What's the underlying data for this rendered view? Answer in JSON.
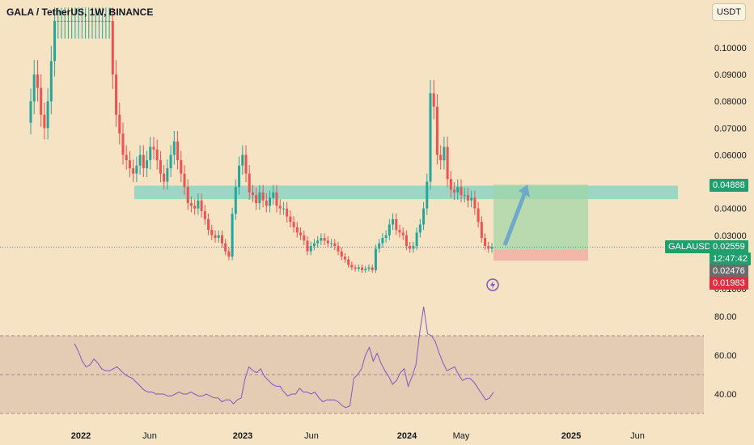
{
  "header": {
    "title": "GALA / TetherUS, 1W, BINANCE",
    "currency": "USDT"
  },
  "price_tags": {
    "target": "0.04888",
    "symbol": "GALAUSDT",
    "current": "0.02559",
    "countdown": "12:47:42",
    "entry": "0.02476",
    "stop": "0.01983"
  },
  "colors": {
    "up": "#26a69a",
    "down": "#ef5350",
    "background": "#f5e3c3",
    "zone": "#7fd1c4",
    "rsi": "#7e57c2"
  },
  "chart_data": [
    {
      "type": "candlestick",
      "symbol": "GALA / TetherUS, 1W, BINANCE",
      "y_ticks": [
        "0.10000",
        "0.09000",
        "0.08000",
        "0.07000",
        "0.06000",
        "0.05000",
        "0.04000",
        "0.03000",
        "0.02000",
        "0.01000"
      ],
      "x_ticks": [
        "2022",
        "Jun",
        "2023",
        "Jun",
        "2024",
        "May",
        "2025",
        "Jun"
      ],
      "ylim": [
        0.008,
        0.11
      ],
      "resistance_zone": [
        0.0435,
        0.0485
      ],
      "close_series": [
        0.08,
        0.09,
        0.085,
        0.075,
        0.07,
        0.08,
        0.095,
        0.11,
        0.11,
        0.11,
        0.11,
        0.11,
        0.11,
        0.11,
        0.11,
        0.11,
        0.11,
        0.11,
        0.11,
        0.11,
        0.11,
        0.11,
        0.11,
        0.11,
        0.09,
        0.075,
        0.068,
        0.06,
        0.058,
        0.055,
        0.053,
        0.056,
        0.06,
        0.055,
        0.058,
        0.063,
        0.062,
        0.058,
        0.053,
        0.05,
        0.055,
        0.06,
        0.065,
        0.058,
        0.053,
        0.048,
        0.042,
        0.041,
        0.04,
        0.043,
        0.039,
        0.036,
        0.032,
        0.03,
        0.029,
        0.03,
        0.027,
        0.024,
        0.022,
        0.038,
        0.048,
        0.056,
        0.06,
        0.053,
        0.046,
        0.045,
        0.042,
        0.046,
        0.043,
        0.041,
        0.044,
        0.046,
        0.041,
        0.04,
        0.04,
        0.037,
        0.035,
        0.033,
        0.031,
        0.03,
        0.028,
        0.024,
        0.026,
        0.027,
        0.028,
        0.029,
        0.028,
        0.027,
        0.027,
        0.026,
        0.024,
        0.022,
        0.021,
        0.019,
        0.018,
        0.0175,
        0.018,
        0.017,
        0.0175,
        0.018,
        0.017,
        0.025,
        0.027,
        0.029,
        0.03,
        0.034,
        0.036,
        0.032,
        0.031,
        0.03,
        0.026,
        0.025,
        0.026,
        0.031,
        0.034,
        0.04,
        0.05,
        0.083,
        0.078,
        0.06,
        0.058,
        0.063,
        0.051,
        0.047,
        0.046,
        0.048,
        0.045,
        0.045,
        0.043,
        0.044,
        0.04,
        0.035,
        0.029,
        0.026,
        0.025,
        0.02559
      ],
      "projection": {
        "entry": 0.02476,
        "target": 0.04888,
        "stop": 0.01983
      }
    },
    {
      "type": "line",
      "name": "RSI",
      "y_ticks": [
        "80.00",
        "60.00",
        "40.00"
      ],
      "upper": 70,
      "lower": 30,
      "middle": 50,
      "values": [
        66,
        62,
        57,
        54,
        55,
        58,
        56,
        53,
        52,
        52,
        53,
        54,
        52,
        50,
        49,
        48,
        46,
        44,
        42,
        41,
        41,
        40,
        40,
        40,
        39,
        39,
        40,
        41,
        40,
        40,
        41,
        40,
        39,
        39,
        40,
        39,
        38,
        38,
        36,
        37,
        37,
        35,
        37,
        38,
        48,
        54,
        52,
        51,
        53,
        49,
        47,
        45,
        44,
        44,
        41,
        39,
        40,
        40,
        43,
        41,
        41,
        40,
        41,
        38,
        36,
        37,
        37,
        37,
        36,
        34,
        33,
        34,
        48,
        50,
        53,
        60,
        64,
        57,
        61,
        56,
        52,
        49,
        45,
        47,
        51,
        53,
        44,
        49,
        55,
        72,
        85,
        71,
        70,
        67,
        61,
        56,
        52,
        53,
        54,
        50,
        47,
        48,
        48,
        46,
        43,
        40,
        37,
        38,
        41
      ]
    }
  ]
}
